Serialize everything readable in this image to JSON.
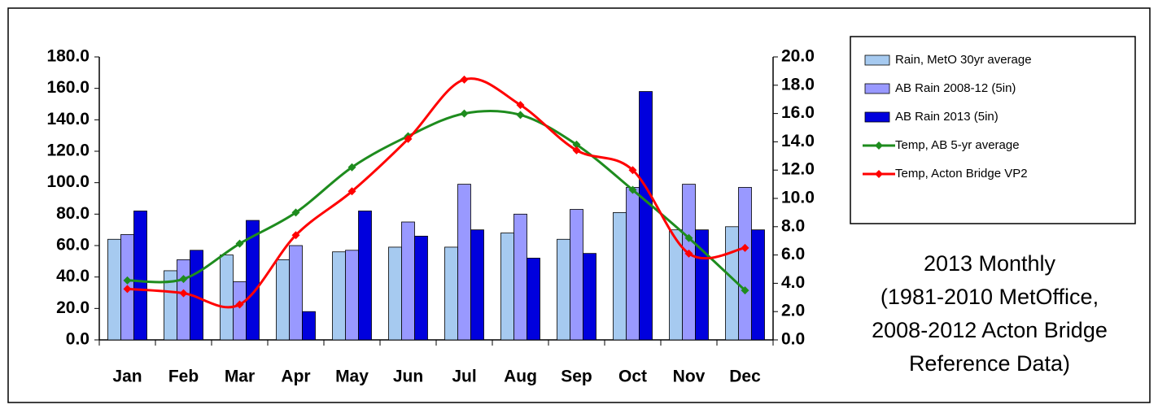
{
  "chart_data": {
    "type": "bar-line",
    "categories": [
      "Jan",
      "Feb",
      "Mar",
      "Apr",
      "May",
      "Jun",
      "Jul",
      "Aug",
      "Sep",
      "Oct",
      "Nov",
      "Dec"
    ],
    "series": [
      {
        "name": "Rain, MetO 30yr average",
        "type": "bar",
        "color": "#a6caf0",
        "values": [
          64,
          44,
          54,
          51,
          56,
          59,
          59,
          68,
          64,
          81,
          70,
          72
        ]
      },
      {
        "name": "AB Rain 2008-12 (5in)",
        "type": "bar",
        "color": "#9999ff",
        "values": [
          67,
          51,
          37,
          60,
          57,
          75,
          99,
          80,
          83,
          97,
          99,
          97
        ]
      },
      {
        "name": "AB Rain 2013 (5in)",
        "type": "bar",
        "color": "#0000dd",
        "values": [
          82,
          57,
          76,
          18,
          82,
          66,
          70,
          52,
          55,
          158,
          70,
          70
        ]
      },
      {
        "name": "Temp, AB 5-yr average",
        "type": "line",
        "axis": "y2",
        "color": "#1e8c1e",
        "values": [
          4.2,
          4.3,
          6.8,
          9.0,
          12.2,
          14.4,
          16.0,
          15.9,
          13.8,
          10.6,
          7.2,
          3.5
        ]
      },
      {
        "name": "Temp, Acton Bridge VP2",
        "type": "line",
        "axis": "y2",
        "color": "#ff0000",
        "values": [
          3.6,
          3.3,
          2.5,
          7.4,
          10.5,
          14.2,
          18.4,
          16.6,
          13.4,
          12.0,
          6.1,
          6.5
        ]
      }
    ],
    "ylim": [
      0,
      180
    ],
    "yticks": [
      {
        "value": 0,
        "label": "0.0"
      },
      {
        "value": 20,
        "label": "20.0"
      },
      {
        "value": 40,
        "label": "40.0"
      },
      {
        "value": 60,
        "label": "60.0"
      },
      {
        "value": 80,
        "label": "80.0"
      },
      {
        "value": 100,
        "label": "100.0"
      },
      {
        "value": 120,
        "label": "120.0"
      },
      {
        "value": 140,
        "label": "140.0"
      },
      {
        "value": 160,
        "label": "160.0"
      },
      {
        "value": 180,
        "label": "180.0"
      }
    ],
    "y2lim": [
      0,
      20
    ],
    "y2ticks": [
      {
        "value": 0,
        "label": "0.0"
      },
      {
        "value": 2,
        "label": "2.0"
      },
      {
        "value": 4,
        "label": "4.0"
      },
      {
        "value": 6,
        "label": "6.0"
      },
      {
        "value": 8,
        "label": "8.0"
      },
      {
        "value": 10,
        "label": "10.0"
      },
      {
        "value": 12,
        "label": "12.0"
      },
      {
        "value": 14,
        "label": "14.0"
      },
      {
        "value": 16,
        "label": "16.0"
      },
      {
        "value": 18,
        "label": "18.0"
      },
      {
        "value": 20,
        "label": "20.0"
      }
    ],
    "annotation": [
      "2013 Monthly",
      "(1981-2010 MetOffice,",
      "2008-2012 Acton Bridge",
      "Reference Data)"
    ],
    "grid": false
  }
}
